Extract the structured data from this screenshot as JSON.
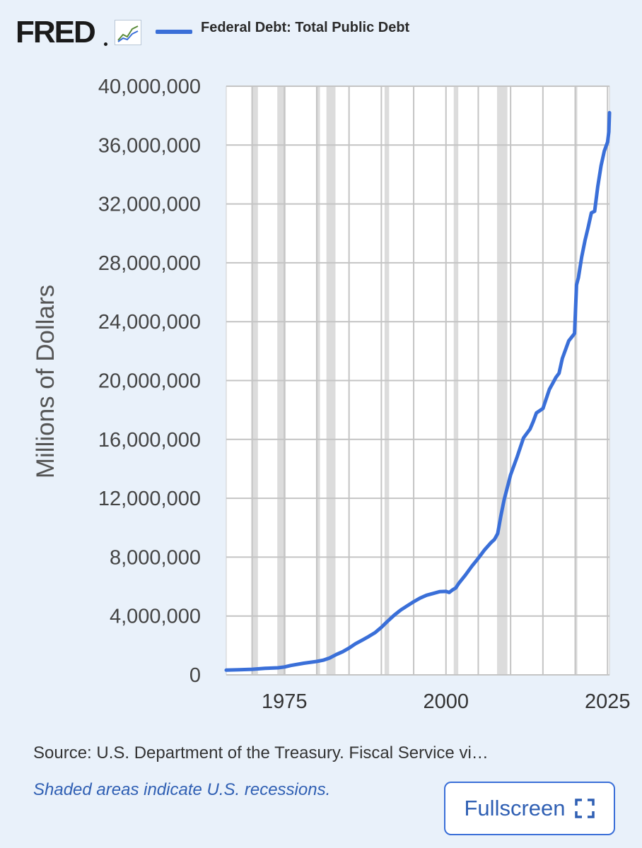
{
  "header": {
    "logo_text": "FRED",
    "series_title": "Federal Debt: Total Public Debt"
  },
  "colors": {
    "series_line": "#3a6fd8",
    "recession_shade": "#dcdcdc",
    "grid": "#c4c4c4",
    "plot_background": "#ffffff",
    "page_background": "#e9f1fa"
  },
  "footer": {
    "source": "Source: U.S. Department of the Treasury. Fiscal Service vi…",
    "recession_note": "Shaded areas indicate U.S. recessions.",
    "fullscreen_label": "Fullscreen",
    "fullscreen_icon": "fullscreen-icon"
  },
  "chart_data": {
    "type": "line",
    "title": "Federal Debt: Total Public Debt",
    "xlabel": "",
    "ylabel": "Millions of Dollars",
    "xlim": [
      1966,
      2025.3
    ],
    "ylim": [
      0,
      40000000
    ],
    "grid": true,
    "y_ticks": [
      0,
      4000000,
      8000000,
      12000000,
      16000000,
      20000000,
      24000000,
      28000000,
      32000000,
      36000000,
      40000000
    ],
    "y_tick_labels": [
      "0",
      "4,000,000",
      "8,000,000",
      "12,000,000",
      "16,000,000",
      "20,000,000",
      "24,000,000",
      "28,000,000",
      "32,000,000",
      "36,000,000",
      "40,000,000"
    ],
    "x_ticks": [
      1975,
      2000,
      2025
    ],
    "x_tick_labels": [
      "1975",
      "2000",
      "2025"
    ],
    "recessions": [
      [
        1969.9,
        1970.9
      ],
      [
        1973.9,
        1975.2
      ],
      [
        1980.0,
        1980.5
      ],
      [
        1981.5,
        1982.9
      ],
      [
        1990.5,
        1991.2
      ],
      [
        2001.2,
        2001.9
      ],
      [
        2007.9,
        2009.5
      ],
      [
        2020.0,
        2020.3
      ]
    ],
    "series": [
      {
        "name": "Federal Debt: Total Public Debt",
        "x": [
          1966,
          1968,
          1970,
          1972,
          1974,
          1975,
          1976,
          1978,
          1980,
          1981,
          1982,
          1983,
          1984,
          1985,
          1986,
          1987,
          1988,
          1989,
          1990,
          1991,
          1992,
          1993,
          1994,
          1995,
          1996,
          1997,
          1998,
          1999,
          2000,
          2000.5,
          2001,
          2001.5,
          2002,
          2003,
          2004,
          2005,
          2006,
          2007,
          2007.5,
          2008,
          2008.5,
          2009,
          2010,
          2011,
          2012,
          2013,
          2013.5,
          2014,
          2015,
          2016,
          2016.5,
          2017,
          2017.5,
          2018,
          2019,
          2019.9,
          2020.2,
          2020.5,
          2021,
          2021.5,
          2022,
          2022.5,
          2023,
          2023.5,
          2024,
          2024.5,
          2025,
          2025.2,
          2025.3
        ],
        "values": [
          320000,
          350000,
          380000,
          440000,
          480000,
          540000,
          640000,
          790000,
          910000,
          1000000,
          1150000,
          1380000,
          1570000,
          1820000,
          2120000,
          2350000,
          2600000,
          2860000,
          3230000,
          3660000,
          4060000,
          4410000,
          4690000,
          4970000,
          5220000,
          5410000,
          5530000,
          5650000,
          5670000,
          5600000,
          5770000,
          5900000,
          6230000,
          6780000,
          7380000,
          7930000,
          8510000,
          9000000,
          9200000,
          9600000,
          10800000,
          11900000,
          13600000,
          14800000,
          16100000,
          16700000,
          17200000,
          17800000,
          18100000,
          19400000,
          19800000,
          20200000,
          20500000,
          21500000,
          22700000,
          23200000,
          26500000,
          27000000,
          28400000,
          29500000,
          30400000,
          31400000,
          31500000,
          33200000,
          34600000,
          35600000,
          36200000,
          36900000,
          38200000
        ]
      }
    ]
  }
}
